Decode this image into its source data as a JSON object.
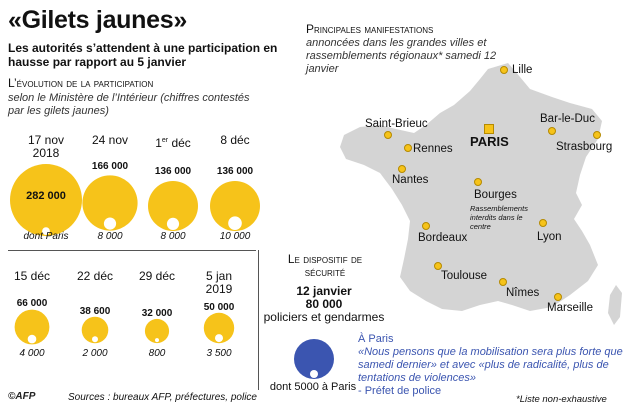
{
  "title": "«Gilets jaunes»",
  "subtitle": "Les autorités s’attendent à une participation en hausse par rapport au 5 janvier",
  "section_evolution": "L’évolution de la participation",
  "source_note": "selon le Ministère de l’Intérieur (chiffres contestés par les gilets jaunes)",
  "dont_paris_label": "dont Paris",
  "chart_data": {
    "type": "bubble",
    "title": "L’évolution de la participation",
    "categories": [
      "17 nov 2018",
      "24 nov",
      "1er déc",
      "8 déc",
      "15 déc",
      "22 déc",
      "29 déc",
      "5 jan 2019"
    ],
    "series": [
      {
        "name": "total",
        "values": [
          282000,
          166000,
          136000,
          136000,
          66000,
          38600,
          32000,
          50000
        ]
      },
      {
        "name": "dont Paris",
        "values": [
          null,
          8000,
          8000,
          10000,
          4000,
          2000,
          800,
          3500
        ]
      }
    ],
    "value_labels": [
      "282 000",
      "166 000",
      "136 000",
      "136 000",
      "66 000",
      "38 600",
      "32 000",
      "50 000"
    ],
    "paris_labels": [
      "",
      "8 000",
      "8 000",
      "10 000",
      "4 000",
      "2 000",
      "800",
      "3 500"
    ],
    "bubble_color": "#f6c31a",
    "paris_color": "#ffffff"
  },
  "row1_dates": [
    {
      "main": "17 nov",
      "second": "2018"
    },
    {
      "main": "24 nov",
      "second": ""
    },
    {
      "main": "1",
      "sup": "er",
      "rest": " déc"
    },
    {
      "main": "8 déc",
      "second": ""
    }
  ],
  "row2_dates": [
    {
      "main": "15 déc",
      "second": ""
    },
    {
      "main": "22 déc",
      "second": ""
    },
    {
      "main": "29 déc",
      "second": ""
    },
    {
      "main": "5 jan",
      "second": "2019"
    }
  ],
  "map": {
    "heading": "Principales manifestations",
    "sub": "annoncées dans les grandes villes et rassemblements régionaux* samedi 12 janvier",
    "capital": "PARIS",
    "cities": [
      "Lille",
      "Saint-Brieuc",
      "Rennes",
      "Nantes",
      "Bar-le-Duc",
      "Strasbourg",
      "Bourges",
      "Bordeaux",
      "Lyon",
      "Toulouse",
      "Nîmes",
      "Marseille"
    ],
    "bourges_note": "Rassemblements interdits dans le centre",
    "land_color": "#d4d4d4",
    "dot_color": "#f6c31a"
  },
  "securite": {
    "title": "Le dispositif de sécurité",
    "date": "12 janvier",
    "count": "80 000",
    "desc": "policiers et gendarmes",
    "paris": "dont 5000 à Paris",
    "circle_color": "#3b55b0"
  },
  "quote": {
    "lead": "À Paris",
    "text": "«Nous pensons que la mobilisation sera plus forte que samedi dernier» et avec «plus de radicalité, plus de tentations de violences»",
    "author": "- Préfet de police"
  },
  "footer": {
    "logo": "AFP",
    "sources": "Sources : bureaux AFP, préfectures, police",
    "liste": "*Liste non-exhaustive"
  }
}
